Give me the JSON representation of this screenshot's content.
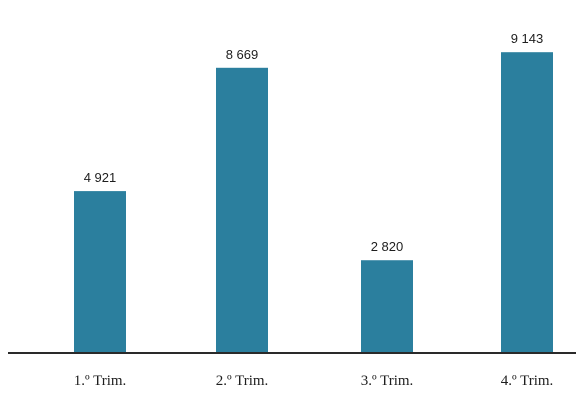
{
  "colors": {
    "bar": "#2b7f9e",
    "axis": "#2a2a2a",
    "text": "#1e1e1e",
    "background": "#ffffff"
  },
  "chart_data": {
    "type": "bar",
    "title": "",
    "xlabel": "",
    "ylabel": "",
    "categories": [
      "1.º Trim.",
      "2.º Trim.",
      "3.º Trim.",
      "4.º Trim."
    ],
    "values": [
      4921,
      8669,
      2820,
      9143
    ],
    "value_labels": [
      "4 921",
      "8 669",
      "2 820",
      "9 143"
    ],
    "ylim": [
      0,
      10000
    ],
    "grid": false,
    "legend": "none"
  }
}
